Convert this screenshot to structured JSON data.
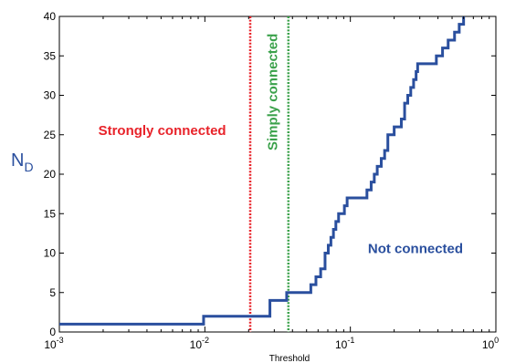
{
  "chart_data": {
    "type": "line",
    "title": "",
    "xlabel": "Threshold",
    "ylabel": {
      "main": "N",
      "sub": "D"
    },
    "x_scale": "log",
    "xlim": [
      0.001,
      1
    ],
    "ylim": [
      0,
      40
    ],
    "grid": false,
    "x_ticks": [
      {
        "value": 0.001,
        "base": "10",
        "exp": "-3"
      },
      {
        "value": 0.01,
        "base": "10",
        "exp": "-2"
      },
      {
        "value": 0.1,
        "base": "10",
        "exp": "-1"
      },
      {
        "value": 1,
        "base": "10",
        "exp": "0"
      }
    ],
    "y_ticks": [
      0,
      5,
      10,
      15,
      20,
      25,
      30,
      35,
      40
    ],
    "series": [
      {
        "color": "#2a4f9e",
        "x": [
          0.001,
          0.0092,
          0.0098,
          0.0255,
          0.028,
          0.0335,
          0.0365,
          0.049,
          0.0535,
          0.058,
          0.0625,
          0.067,
          0.0705,
          0.0735,
          0.0765,
          0.0795,
          0.083,
          0.087,
          0.091,
          0.095,
          0.1,
          0.124,
          0.13,
          0.139,
          0.146,
          0.153,
          0.163,
          0.172,
          0.181,
          0.19,
          0.2,
          0.212,
          0.224,
          0.236,
          0.248,
          0.26,
          0.272,
          0.283,
          0.29,
          0.36,
          0.39,
          0.43,
          0.47,
          0.52,
          0.56,
          0.6
        ],
        "y": [
          1,
          1,
          2,
          2,
          4,
          4,
          5,
          5,
          6,
          7,
          8,
          10,
          11,
          12,
          13,
          14,
          15,
          15,
          16,
          17,
          17,
          17,
          18,
          19,
          20,
          21,
          22,
          23,
          25,
          25,
          26,
          26,
          27,
          29,
          30,
          31,
          32,
          33,
          34,
          34,
          35,
          36,
          37,
          38,
          39,
          40
        ]
      }
    ],
    "vlines": [
      {
        "x": 0.0205,
        "color": "#e8232a",
        "style": "dotted"
      },
      {
        "x": 0.0375,
        "color": "#3aa14a",
        "style": "dotted"
      }
    ],
    "annotations": [
      {
        "text": "Strongly connected",
        "x": 0.00185,
        "y": 25,
        "color": "#e8232a",
        "rotation": 0
      },
      {
        "text": "Simply connected",
        "x": 0.0315,
        "y": 23,
        "color": "#3aa14a",
        "rotation": -90
      },
      {
        "text": "Not connected",
        "x": 0.132,
        "y": 10,
        "color": "#2a4f9e",
        "rotation": 0
      }
    ],
    "colors": {
      "ylabel": "#2a4f9e"
    }
  }
}
